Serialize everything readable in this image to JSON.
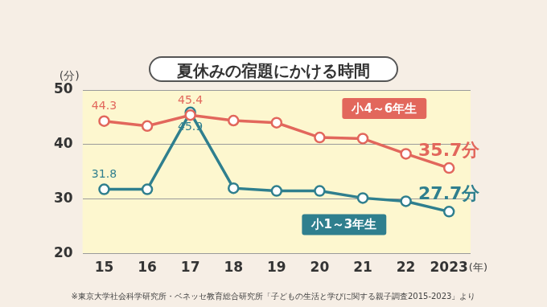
{
  "chart_data": {
    "type": "line",
    "title": "夏休みの宿題にかける時間",
    "y_label": "(分)",
    "x_label": "(年)",
    "note": "※東京大学社会科学研究所・ベネッセ教育総合研究所「子どもの生活と学びに関する親子調査2015-2023」より",
    "categories": [
      "15",
      "16",
      "17",
      "18",
      "19",
      "20",
      "21",
      "22",
      "2023"
    ],
    "series": [
      {
        "name": "小4～6年生",
        "color": "#e2675c",
        "marker": "circle",
        "values": [
          44.3,
          43.4,
          45.4,
          44.4,
          44.0,
          41.3,
          41.1,
          38.3,
          35.7
        ],
        "value_labels": [
          "44.3",
          null,
          "45.4",
          null,
          null,
          null,
          null,
          null,
          "35.7分"
        ]
      },
      {
        "name": "小1～3年生",
        "color": "#2f7f8e",
        "marker": "circle",
        "values": [
          31.8,
          31.8,
          45.9,
          32.0,
          31.5,
          31.5,
          30.2,
          29.6,
          27.7
        ],
        "value_labels": [
          "31.8",
          null,
          "45.9",
          null,
          null,
          null,
          null,
          null,
          "27.7分"
        ]
      }
    ],
    "ylim": [
      20,
      50
    ],
    "yticks": [
      20,
      30,
      40,
      50
    ],
    "grid": true
  }
}
